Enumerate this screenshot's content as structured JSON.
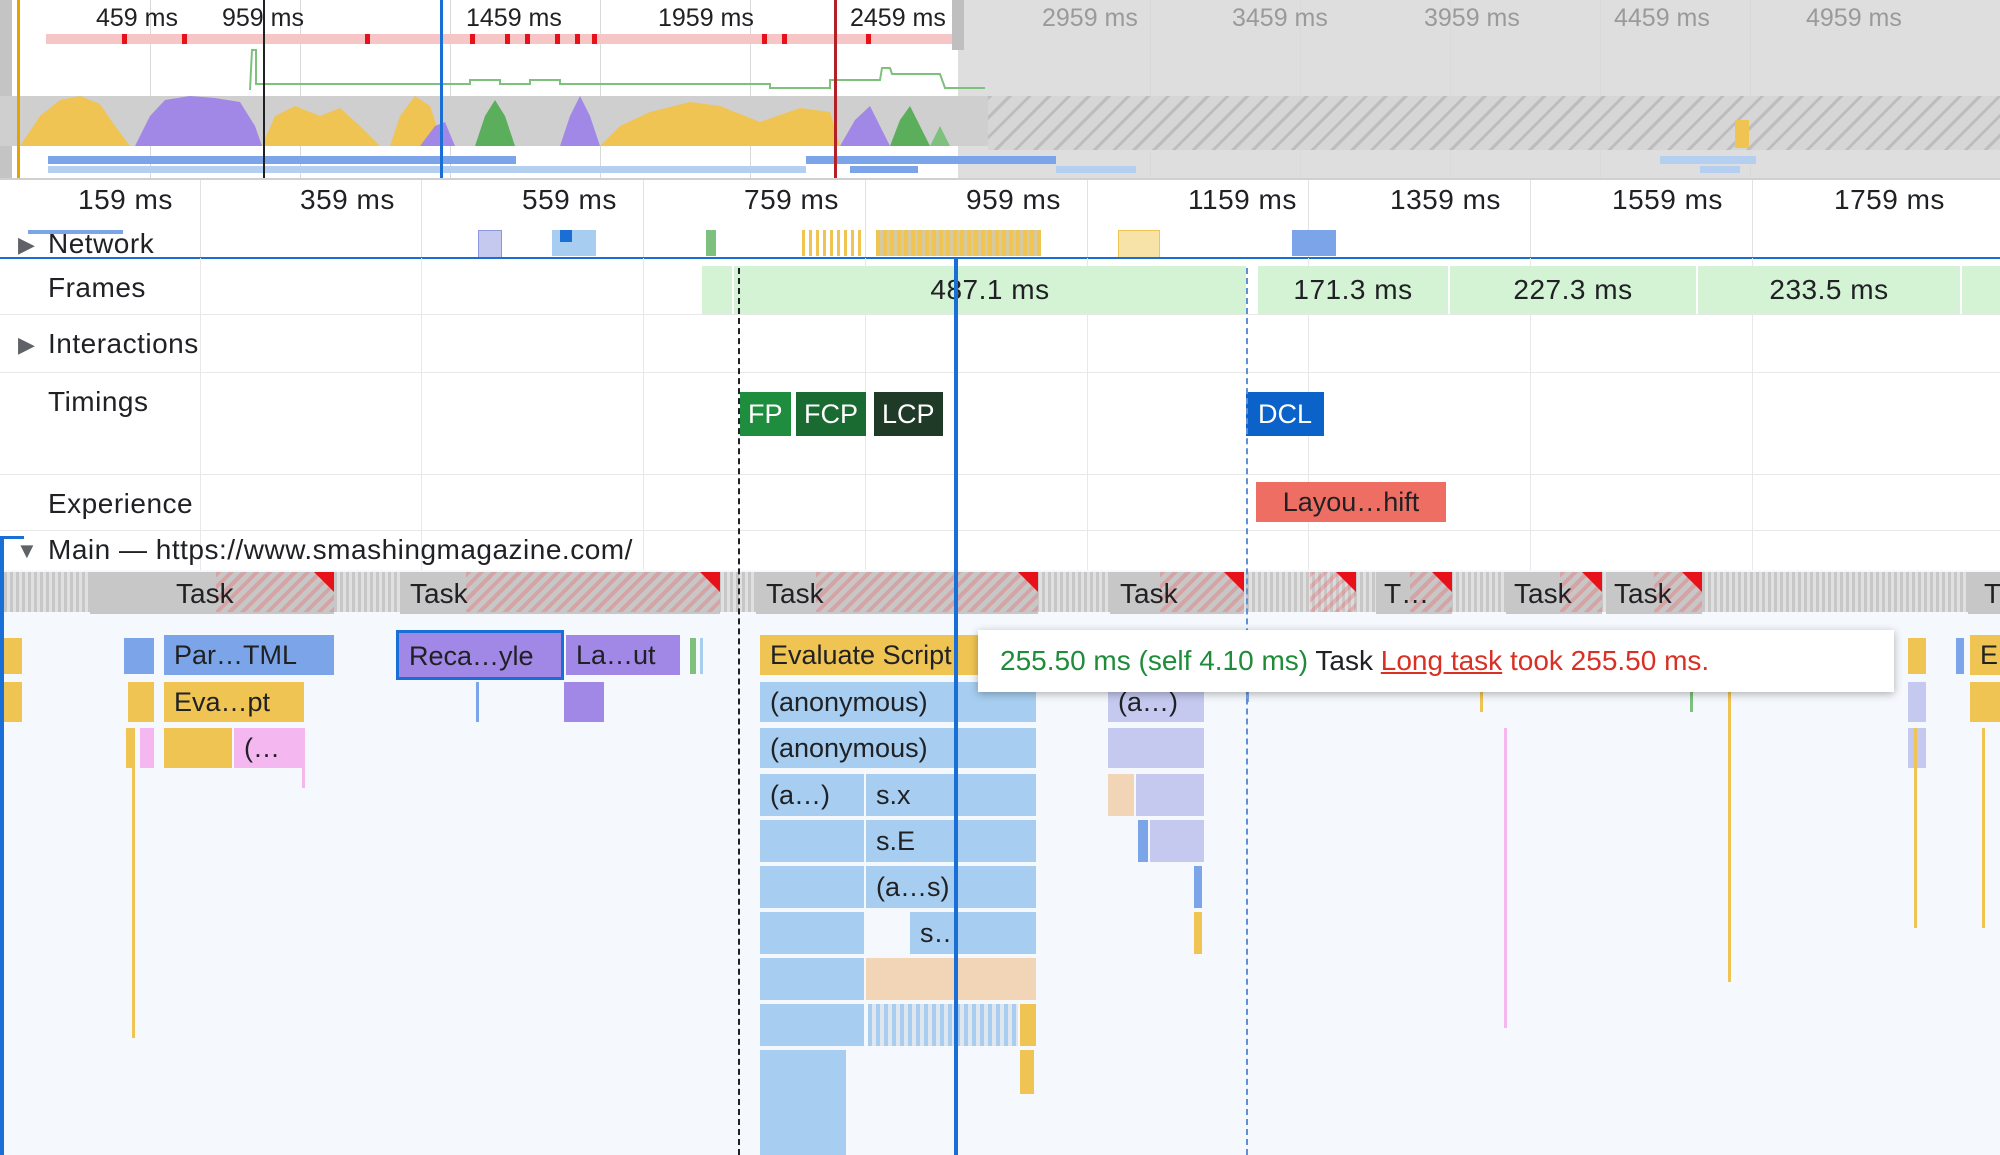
{
  "overview": {
    "labels": [
      "459 ms",
      "959 ms",
      "1459 ms",
      "1959 ms",
      "2459 ms",
      "2959 ms",
      "3459 ms",
      "3959 ms",
      "4459 ms",
      "4959 ms"
    ]
  },
  "ruler": {
    "labels": [
      "159 ms",
      "359 ms",
      "559 ms",
      "759 ms",
      "959 ms",
      "1159 ms",
      "1359 ms",
      "1559 ms",
      "1759 ms"
    ]
  },
  "tracks": {
    "network": "Network",
    "frames": "Frames",
    "interactions": "Interactions",
    "timings": "Timings",
    "experience": "Experience",
    "main": "Main — https://www.smashingmagazine.com/"
  },
  "frames": [
    "487.1 ms",
    "171.3 ms",
    "227.3 ms",
    "233.5 ms"
  ],
  "timings": {
    "fp": "FP",
    "fcp": "FCP",
    "lcp": "LCP",
    "dcl": "DCL"
  },
  "experience": {
    "layout_shift": "Layou…hift"
  },
  "flame": {
    "task": "Task",
    "task_short": "T…",
    "task_edge": "T",
    "parse_html": "Par…TML",
    "recalc_style": "Reca…yle",
    "layout": "La…ut",
    "evaluate_short": "Eva…pt",
    "paren": "(…",
    "evaluate_script": "Evaluate Script",
    "anonymous": "(anonymous)",
    "a_ellipsis": "(a…)",
    "sx": "s.x",
    "se": "s.E",
    "as": "(a…s)",
    "s_dots": "s…",
    "edge_e": "E"
  },
  "tooltip": {
    "duration": "255.50 ms (self 4.10 ms)",
    "name": "Task",
    "link": "Long task",
    "message": "took 255.50 ms."
  },
  "colors": {
    "scripting": "#f0c453",
    "rendering": "#a188e6",
    "painting": "#7ec17e",
    "loading": "#7ba5e8",
    "fp": "#1e8e3e",
    "fcp": "#1a6b32",
    "lcp": "#1f3a26",
    "dcl": "#0b62c9",
    "long_task": "#e8111a"
  }
}
